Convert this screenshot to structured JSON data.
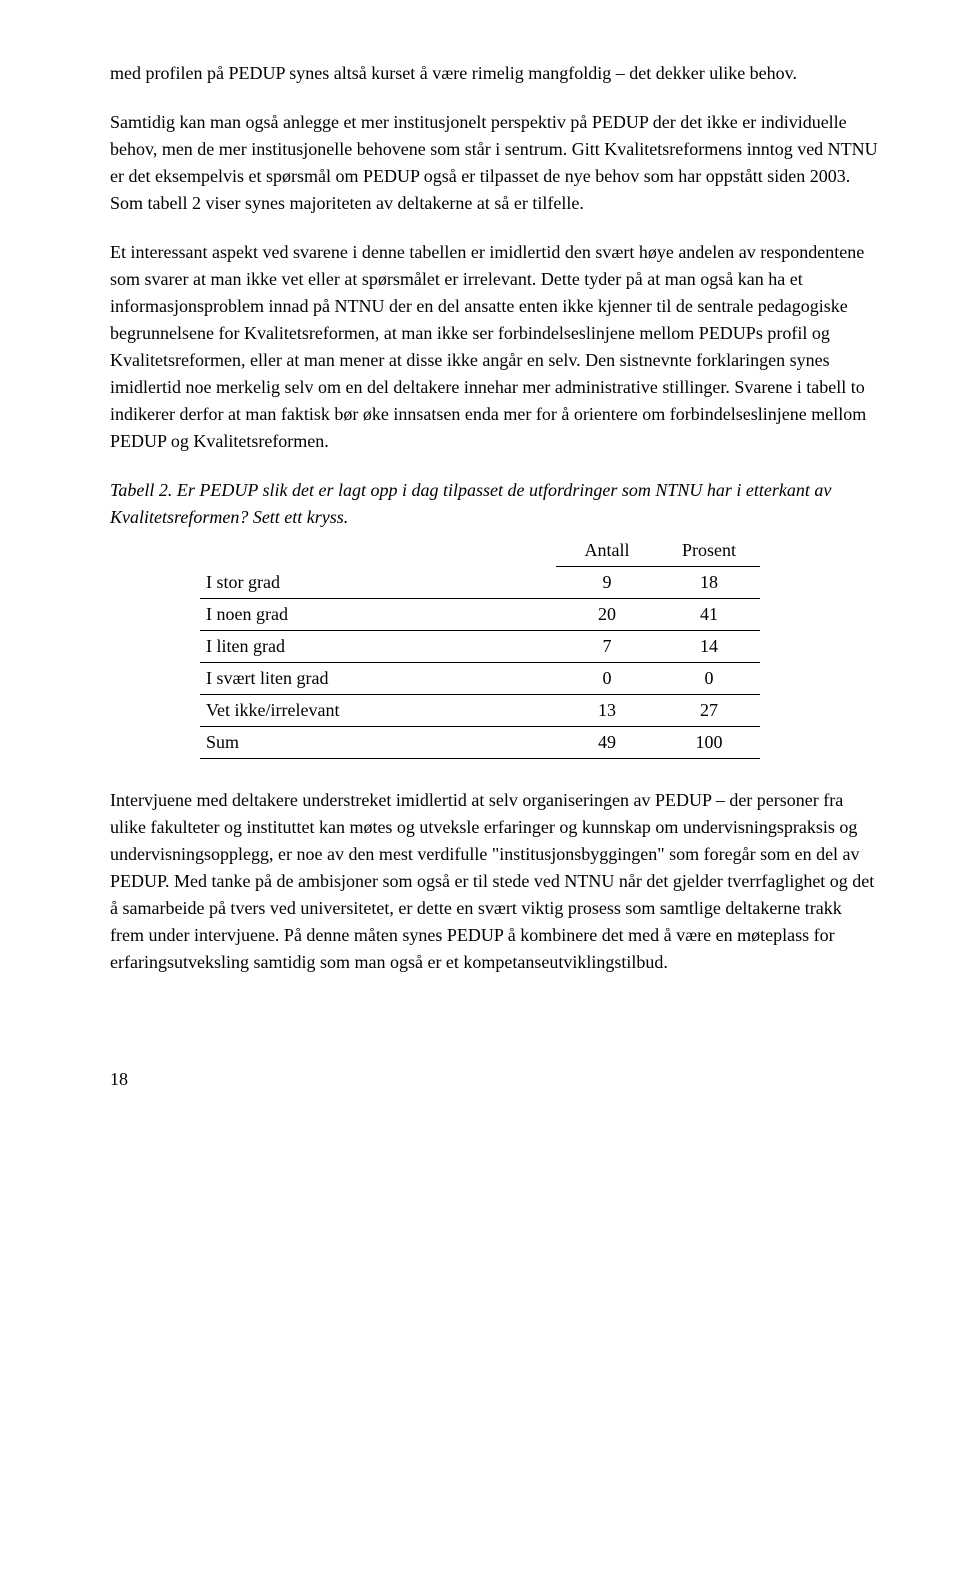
{
  "para1": "med profilen på PEDUP synes altså kurset å være rimelig mangfoldig – det dekker ulike behov.",
  "para2": "Samtidig kan man også anlegge et mer institusjonelt perspektiv på PEDUP der det ikke er individuelle behov, men de mer institusjonelle behovene som står i sentrum. Gitt Kvalitetsreformens inntog ved NTNU er det eksempelvis et spørsmål om PEDUP også er tilpasset de nye behov som har oppstått siden 2003. Som tabell 2 viser synes majoriteten av deltakerne at så er tilfelle.",
  "para3": "Et interessant aspekt ved svarene i denne tabellen er imidlertid den svært høye andelen av respondentene som svarer at man ikke vet eller at spørsmålet er irrelevant. Dette tyder på at man også kan ha et informasjonsproblem innad på NTNU der en del ansatte enten ikke kjenner til de sentrale pedagogiske begrunnelsene for Kvalitetsreformen, at man ikke ser forbindelseslinjene mellom PEDUPs profil og Kvalitetsreformen, eller at man mener at disse ikke angår en selv. Den sistnevnte forklaringen synes imidlertid noe merkelig selv om en del deltakere innehar mer administrative stillinger. Svarene i tabell to indikerer derfor at man faktisk bør øke innsatsen enda mer for å orientere om forbindelseslinjene mellom PEDUP og Kvalitetsreformen.",
  "tableCaption": "Tabell 2. Er PEDUP slik det er lagt opp i dag tilpasset de utfordringer som NTNU har i etterkant av Kvalitetsreformen? Sett ett kryss.",
  "table": {
    "headers": {
      "col1": "Antall",
      "col2": "Prosent"
    },
    "rows": [
      {
        "label": "I stor grad",
        "antall": "9",
        "prosent": "18"
      },
      {
        "label": "I noen grad",
        "antall": "20",
        "prosent": "41"
      },
      {
        "label": "I liten grad",
        "antall": "7",
        "prosent": "14"
      },
      {
        "label": "I svært liten grad",
        "antall": "0",
        "prosent": "0"
      },
      {
        "label": "Vet ikke/irrelevant",
        "antall": "13",
        "prosent": "27"
      },
      {
        "label": "Sum",
        "antall": "49",
        "prosent": "100"
      }
    ]
  },
  "para4": "Intervjuene med deltakere understreket imidlertid at selv organiseringen av PEDUP – der personer fra ulike fakulteter og instituttet kan møtes og utveksle erfaringer og kunnskap om undervisningspraksis og undervisningsopplegg, er noe av den mest verdifulle \"institusjonsbyggingen\" som foregår som en del av PEDUP. Med tanke på de ambisjoner som også er til stede ved NTNU når det gjelder tverrfaglighet og det å samarbeide på tvers ved universitetet, er dette en svært viktig prosess som samtlige deltakerne trakk frem under intervjuene. På denne måten synes PEDUP å kombinere det med å være en møteplass for erfaringsutveksling samtidig som man også er et kompetanseutviklingstilbud.",
  "pageNumber": "18"
}
